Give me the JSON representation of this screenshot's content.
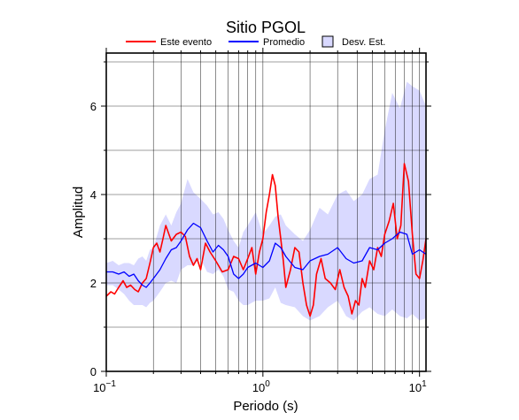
{
  "chart_data": {
    "type": "line",
    "title": "Sitio PGOL",
    "xlabel": "Periodo (s)",
    "ylabel": "Amplitud",
    "xscale": "log",
    "xlim": [
      0.1,
      11
    ],
    "ylim": [
      0,
      7.2
    ],
    "x_ticks": [
      {
        "value": 0.1,
        "base": "10",
        "exp": "−1"
      },
      {
        "value": 1,
        "base": "10",
        "exp": "0"
      },
      {
        "value": 10,
        "base": "10",
        "exp": "1"
      }
    ],
    "y_ticks": [
      0,
      2,
      4,
      6
    ],
    "grid": true,
    "legend": {
      "placement": "top",
      "entries": [
        {
          "label": "Este evento",
          "color": "#ff0000",
          "kind": "line"
        },
        {
          "label": "Promedio",
          "color": "#0000ff",
          "kind": "line"
        },
        {
          "label": "Desv. Est.",
          "color": "#d9d9ff",
          "kind": "patch"
        }
      ]
    },
    "series": [
      {
        "name": "Este evento",
        "color": "#ff0000",
        "x": [
          0.1,
          0.107,
          0.113,
          0.12,
          0.128,
          0.135,
          0.143,
          0.152,
          0.16,
          0.17,
          0.18,
          0.19,
          0.2,
          0.21,
          0.22,
          0.23,
          0.24,
          0.26,
          0.28,
          0.3,
          0.32,
          0.34,
          0.36,
          0.38,
          0.4,
          0.43,
          0.46,
          0.5,
          0.55,
          0.6,
          0.65,
          0.7,
          0.75,
          0.8,
          0.85,
          0.9,
          0.95,
          1.0,
          1.05,
          1.1,
          1.15,
          1.2,
          1.25,
          1.3,
          1.35,
          1.4,
          1.5,
          1.6,
          1.7,
          1.8,
          1.9,
          2.0,
          2.1,
          2.2,
          2.35,
          2.5,
          2.7,
          2.9,
          3.1,
          3.3,
          3.5,
          3.7,
          3.9,
          4.1,
          4.3,
          4.5,
          4.8,
          5.1,
          5.4,
          5.7,
          6.0,
          6.4,
          6.8,
          7.2,
          7.6,
          8.0,
          8.5,
          9.0,
          9.5,
          10.0,
          10.5,
          11.0
        ],
        "values": [
          1.7,
          1.8,
          1.75,
          1.9,
          2.05,
          1.9,
          1.95,
          1.85,
          1.8,
          2.0,
          2.1,
          2.45,
          2.8,
          2.9,
          2.7,
          3.0,
          3.3,
          2.95,
          3.1,
          3.15,
          3.05,
          2.6,
          2.4,
          2.55,
          2.3,
          2.9,
          2.7,
          2.5,
          2.25,
          2.3,
          2.6,
          2.55,
          2.3,
          2.55,
          2.8,
          2.2,
          2.7,
          3.0,
          3.6,
          4.0,
          4.45,
          4.2,
          3.5,
          3.0,
          2.5,
          1.9,
          2.3,
          2.8,
          2.7,
          2.0,
          1.5,
          1.25,
          1.5,
          2.2,
          2.55,
          2.1,
          2.0,
          1.85,
          2.3,
          1.9,
          1.7,
          1.3,
          1.6,
          1.5,
          2.1,
          1.9,
          2.5,
          2.3,
          2.8,
          2.6,
          3.1,
          3.4,
          3.8,
          3.0,
          3.3,
          4.7,
          4.3,
          3.1,
          2.2,
          2.1,
          2.5,
          3.0
        ]
      },
      {
        "name": "Promedio",
        "color": "#0000ff",
        "x": [
          0.1,
          0.11,
          0.12,
          0.13,
          0.14,
          0.15,
          0.16,
          0.17,
          0.18,
          0.19,
          0.2,
          0.22,
          0.24,
          0.26,
          0.28,
          0.3,
          0.33,
          0.36,
          0.4,
          0.44,
          0.48,
          0.52,
          0.56,
          0.6,
          0.65,
          0.7,
          0.75,
          0.8,
          0.9,
          1.0,
          1.1,
          1.2,
          1.3,
          1.4,
          1.6,
          1.8,
          2.0,
          2.3,
          2.6,
          3.0,
          3.4,
          3.8,
          4.3,
          4.8,
          5.4,
          6.0,
          6.7,
          7.5,
          8.3,
          9.0,
          10.0,
          11.0
        ],
        "values": [
          2.25,
          2.25,
          2.2,
          2.25,
          2.15,
          2.2,
          2.05,
          1.95,
          1.9,
          2.0,
          2.1,
          2.3,
          2.55,
          2.75,
          2.8,
          2.95,
          3.2,
          3.35,
          3.25,
          2.95,
          2.7,
          2.85,
          2.75,
          2.6,
          2.2,
          2.1,
          2.2,
          2.35,
          2.45,
          2.35,
          2.5,
          2.9,
          2.8,
          2.6,
          2.35,
          2.3,
          2.5,
          2.6,
          2.65,
          2.8,
          2.55,
          2.45,
          2.5,
          2.8,
          2.75,
          2.9,
          3.0,
          3.15,
          3.1,
          2.65,
          2.75,
          2.65
        ]
      }
    ],
    "band": {
      "name": "Desv. Est.",
      "color": "#d9d9ff",
      "x": [
        0.1,
        0.11,
        0.12,
        0.13,
        0.14,
        0.15,
        0.16,
        0.17,
        0.18,
        0.19,
        0.2,
        0.22,
        0.24,
        0.26,
        0.28,
        0.3,
        0.33,
        0.36,
        0.4,
        0.44,
        0.48,
        0.52,
        0.56,
        0.6,
        0.65,
        0.7,
        0.75,
        0.8,
        0.9,
        1.0,
        1.1,
        1.2,
        1.3,
        1.4,
        1.6,
        1.8,
        2.0,
        2.3,
        2.6,
        3.0,
        3.4,
        3.8,
        4.3,
        4.8,
        5.4,
        6.0,
        6.7,
        7.5,
        8.3,
        9.0,
        10.0,
        11.0
      ],
      "upper": [
        2.45,
        2.5,
        2.4,
        2.45,
        2.45,
        2.4,
        2.55,
        2.6,
        2.5,
        2.75,
        2.8,
        3.3,
        3.55,
        3.3,
        3.6,
        3.8,
        4.35,
        4.05,
        3.9,
        3.75,
        3.55,
        3.6,
        3.45,
        3.2,
        2.95,
        2.8,
        3.15,
        3.3,
        3.6,
        3.1,
        3.3,
        3.5,
        3.55,
        3.3,
        3.1,
        2.95,
        3.2,
        3.7,
        3.55,
        4.0,
        4.1,
        3.85,
        4.0,
        4.35,
        4.45,
        5.45,
        6.3,
        5.95,
        6.55,
        6.45,
        6.35,
        6.0
      ],
      "lower": [
        1.95,
        1.95,
        1.85,
        1.75,
        1.6,
        1.5,
        1.5,
        1.5,
        1.45,
        1.55,
        1.6,
        1.8,
        2.0,
        2.05,
        2.0,
        2.3,
        2.4,
        2.4,
        2.55,
        2.25,
        2.2,
        2.3,
        2.15,
        1.85,
        1.8,
        1.6,
        1.5,
        1.5,
        1.6,
        1.6,
        1.65,
        1.9,
        1.55,
        1.5,
        1.45,
        1.25,
        1.15,
        1.25,
        1.45,
        1.6,
        1.25,
        1.15,
        1.35,
        1.45,
        1.3,
        1.25,
        1.4,
        1.25,
        1.2,
        1.3,
        1.15,
        1.2
      ]
    }
  }
}
